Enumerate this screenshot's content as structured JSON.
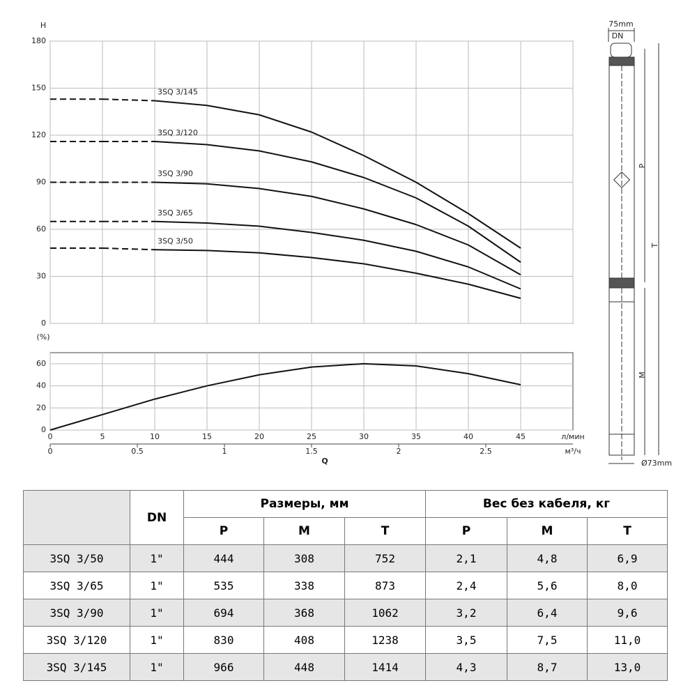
{
  "chart_data": [
    {
      "type": "line",
      "y_label": "H",
      "xlim": [
        0,
        50
      ],
      "xticks": [
        0,
        5,
        10,
        15,
        20,
        25,
        30,
        35,
        40,
        45,
        50
      ],
      "ylim": [
        0,
        180
      ],
      "yticks": [
        0,
        30,
        60,
        90,
        120,
        150,
        180
      ],
      "grid": true,
      "dash_to_x": 10,
      "x": [
        0,
        5,
        10,
        15,
        20,
        25,
        30,
        35,
        40,
        45
      ],
      "series": [
        {
          "name": "3SQ 3/145",
          "color": "#111111",
          "values": [
            143,
            143,
            142,
            139,
            133,
            122,
            107,
            90,
            70,
            48
          ]
        },
        {
          "name": "3SQ 3/120",
          "color": "#111111",
          "values": [
            116,
            116,
            116,
            114,
            110,
            103,
            93,
            80,
            62,
            39
          ]
        },
        {
          "name": "3SQ 3/90",
          "color": "#111111",
          "values": [
            90,
            90,
            90,
            89,
            86,
            81,
            73,
            63,
            50,
            31
          ]
        },
        {
          "name": "3SQ 3/65",
          "color": "#111111",
          "values": [
            65,
            65,
            65,
            64,
            62,
            58,
            53,
            46,
            36,
            22
          ]
        },
        {
          "name": "3SQ 3/50",
          "color": "#111111",
          "values": [
            48,
            48,
            47,
            46.5,
            45,
            42,
            38,
            32,
            25,
            16
          ]
        }
      ]
    },
    {
      "type": "line",
      "y_label": "(%)",
      "x_label": "л/мин",
      "x2_label": "м³/ч",
      "q_label": "Q",
      "xlim": [
        0,
        50
      ],
      "xticks": [
        0,
        5,
        10,
        15,
        20,
        25,
        30,
        35,
        40,
        45
      ],
      "x2lim": [
        0,
        3
      ],
      "x2ticks": [
        0,
        0.5,
        1,
        1.5,
        2,
        2.5
      ],
      "ylim": [
        0,
        70
      ],
      "yticks": [
        0,
        20,
        40,
        60
      ],
      "grid": true,
      "color": "#111111",
      "x": [
        0,
        5,
        10,
        15,
        20,
        25,
        30,
        35,
        40,
        45
      ],
      "values": [
        0,
        14,
        28,
        40,
        50,
        57,
        60,
        58,
        51,
        41
      ]
    }
  ],
  "drawing": {
    "width_label": "75mm",
    "dn": "DN",
    "p": "P",
    "t": "T",
    "m": "M",
    "diameter": "Ø73mm"
  },
  "table": {
    "dn": "DN",
    "dimensions": "Размеры, мм",
    "weight": "Вес без кабеля, кг",
    "subheader": [
      "P",
      "M",
      "T",
      "P",
      "M",
      "T"
    ],
    "rows": [
      [
        "3SQ 3/50",
        "1\"",
        "444",
        "308",
        "752",
        "2,1",
        "4,8",
        "6,9"
      ],
      [
        "3SQ 3/65",
        "1\"",
        "535",
        "338",
        "873",
        "2,4",
        "5,6",
        "8,0"
      ],
      [
        "3SQ 3/90",
        "1\"",
        "694",
        "368",
        "1062",
        "3,2",
        "6,4",
        "9,6"
      ],
      [
        "3SQ 3/120",
        "1\"",
        "830",
        "408",
        "1238",
        "3,5",
        "7,5",
        "11,0"
      ],
      [
        "3SQ 3/145",
        "1\"",
        "966",
        "448",
        "1414",
        "4,3",
        "8,7",
        "13,0"
      ]
    ]
  }
}
